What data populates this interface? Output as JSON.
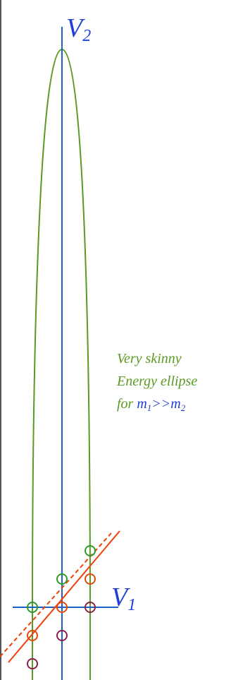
{
  "axes": {
    "v2": {
      "symbol": "V",
      "subscript": "2"
    },
    "v1": {
      "symbol": "V",
      "subscript": "1"
    }
  },
  "note": {
    "line1": "Very skinny",
    "line2": "Energy ellipse",
    "line3_prefix": "for ",
    "m1": "m",
    "m1_sub": "1",
    "relation": ">>",
    "m2": "m",
    "m2_sub": "2"
  },
  "colors": {
    "axis": "#1f5fc8",
    "ellipse": "#5a9a22",
    "momentum_line": "#f0400a",
    "green_marker": "#2e9a2a",
    "red_marker": "#e8480a",
    "purple_marker": "#8a1e4a",
    "axis_label": "#1f3fd6",
    "note_text": "#5a9a22"
  }
}
